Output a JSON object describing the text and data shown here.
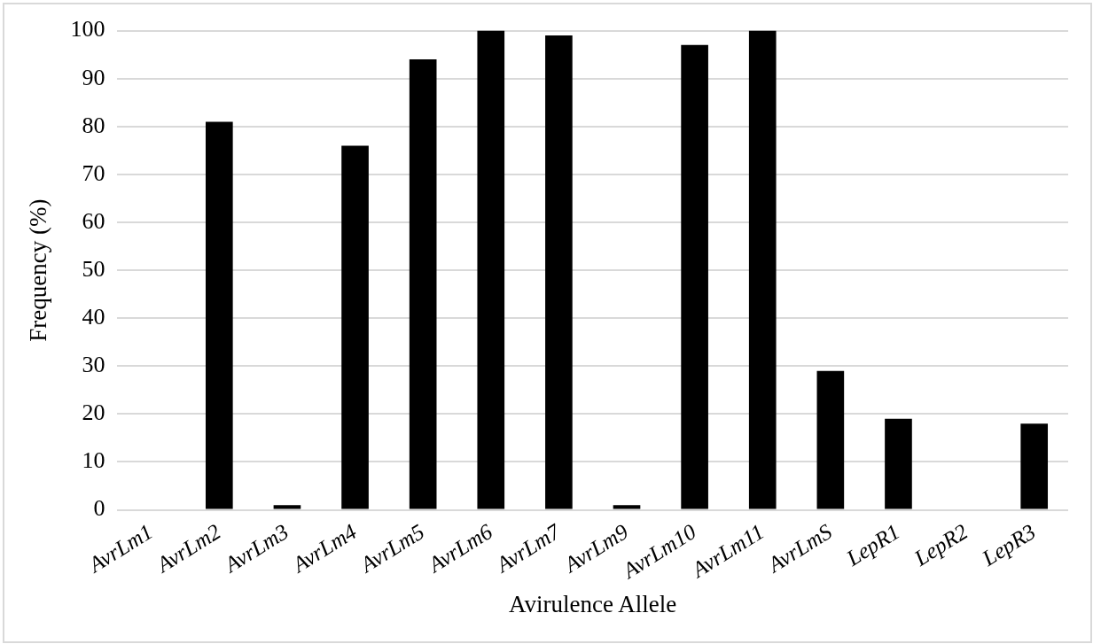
{
  "chart_data": {
    "type": "bar",
    "xlabel": "Avirulence Allele",
    "ylabel": "Frequency (%)",
    "categories": [
      "AvrLm1",
      "AvrLm2",
      "AvrLm3",
      "AvrLm4",
      "AvrLm5",
      "AvrLm6",
      "AvrLm7",
      "AvrLm9",
      "AvrLm10",
      "AvrLm11",
      "AvrLmS",
      "LepR1",
      "LepR2",
      "LepR3"
    ],
    "values": [
      0,
      81,
      1,
      76,
      94,
      100,
      99,
      1,
      97,
      100,
      29,
      19,
      0,
      18
    ],
    "color": "#000000",
    "ylim": [
      0,
      100
    ],
    "yticks": [
      0,
      10,
      20,
      30,
      40,
      50,
      60,
      70,
      80,
      90,
      100
    ],
    "grid": "y",
    "legend": false
  }
}
